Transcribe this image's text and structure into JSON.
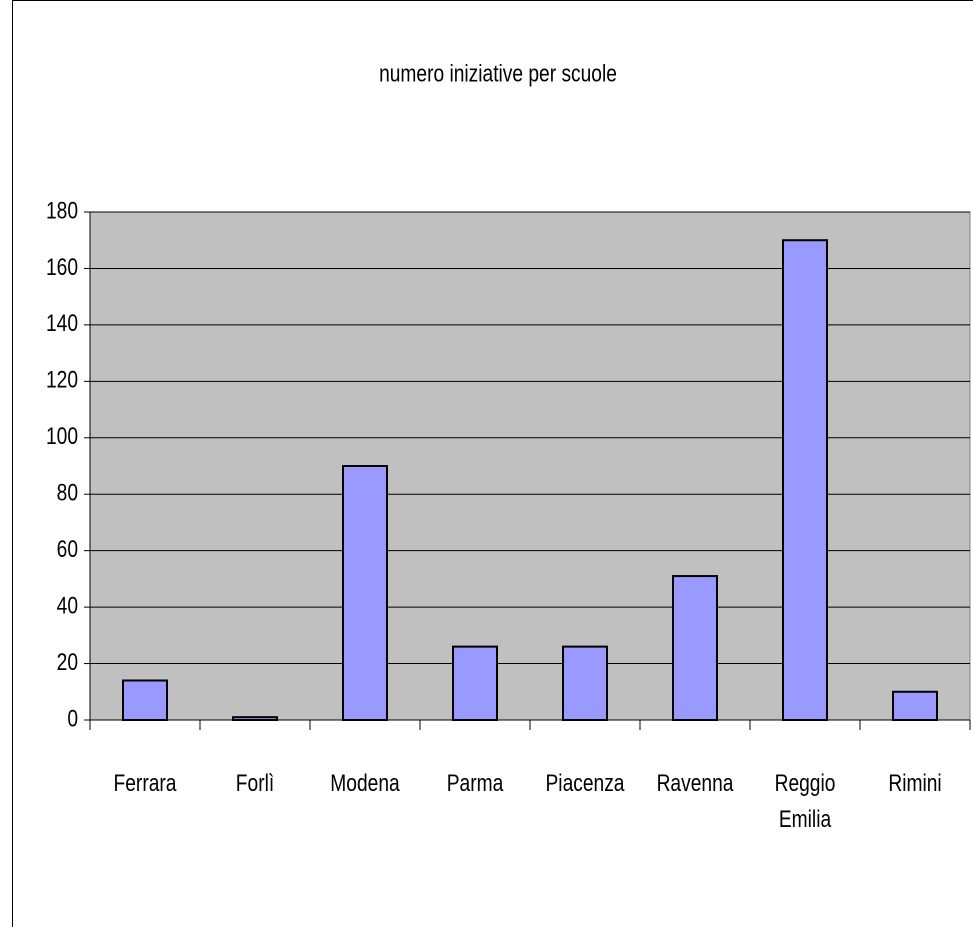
{
  "chart_data": {
    "type": "bar",
    "title": "numero iniziative per scuole",
    "categories": [
      "Ferrara",
      "Forlì",
      "Modena",
      "Parma",
      "Piacenza",
      "Ravenna",
      "Reggio Emilia",
      "Rimini"
    ],
    "values": [
      14,
      1,
      90,
      26,
      26,
      51,
      170,
      10
    ],
    "color": "#9999ff",
    "ylim": [
      0,
      180
    ],
    "yticks": [
      0,
      20,
      40,
      60,
      80,
      100,
      120,
      140,
      160,
      180
    ],
    "grid": true
  }
}
